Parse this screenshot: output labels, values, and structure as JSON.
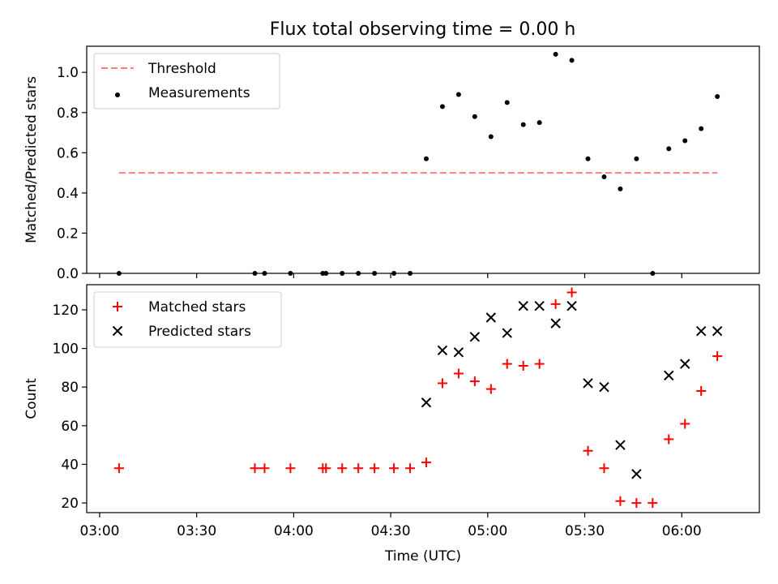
{
  "chart_data": [
    {
      "type": "scatter",
      "title": "Flux total observing time = 0.00 h",
      "ylabel": "Matched/Predicted stars",
      "xlabel": "",
      "ylim": [
        0,
        1.13
      ],
      "xlim": [
        "02:56",
        "06:24"
      ],
      "yticks": [
        0.0,
        0.2,
        0.4,
        0.6,
        0.8,
        1.0
      ],
      "ytick_labels": [
        "0.0",
        "0.2",
        "0.4",
        "0.6",
        "0.8",
        "1.0"
      ],
      "grid": false,
      "legend": {
        "placement": "top-left",
        "entries": [
          {
            "label": "Threshold",
            "marker": "dashed-line",
            "color": "#ff7f7f"
          },
          {
            "label": "Measurements",
            "marker": "dot",
            "color": "#000000"
          }
        ]
      },
      "threshold": {
        "name": "Threshold",
        "value": 0.5,
        "x_start": "03:06",
        "x_end": "06:11",
        "color": "#ff7f7f"
      },
      "series": [
        {
          "name": "Measurements",
          "color": "#000000",
          "x": [
            "03:06",
            "03:48",
            "03:51",
            "03:59",
            "04:09",
            "04:10",
            "04:15",
            "04:20",
            "04:25",
            "04:31",
            "04:36",
            "04:41",
            "04:46",
            "04:51",
            "04:56",
            "05:01",
            "05:06",
            "05:11",
            "05:16",
            "05:21",
            "05:26",
            "05:31",
            "05:36",
            "05:41",
            "05:46",
            "05:51",
            "05:56",
            "06:01",
            "06:06",
            "06:11"
          ],
          "y": [
            0.0,
            0.0,
            0.0,
            0.0,
            0.0,
            0.0,
            0.0,
            0.0,
            0.0,
            0.0,
            0.0,
            0.57,
            0.83,
            0.89,
            0.78,
            0.68,
            0.85,
            0.74,
            0.75,
            1.09,
            1.06,
            0.57,
            0.48,
            0.42,
            0.57,
            0.0,
            0.62,
            0.66,
            0.72,
            0.88
          ]
        }
      ]
    },
    {
      "type": "scatter",
      "title": "",
      "ylabel": "Count",
      "xlabel": "Time (UTC)",
      "ylim": [
        15,
        133
      ],
      "xlim": [
        "02:56",
        "06:24"
      ],
      "yticks": [
        20,
        40,
        60,
        80,
        100,
        120
      ],
      "ytick_labels": [
        "20",
        "40",
        "60",
        "80",
        "100",
        "120"
      ],
      "xticks": [
        "03:00",
        "03:30",
        "04:00",
        "04:30",
        "05:00",
        "05:30",
        "06:00"
      ],
      "xtick_labels": [
        "03:00",
        "03:30",
        "04:00",
        "04:30",
        "05:00",
        "05:30",
        "06:00"
      ],
      "grid": false,
      "legend": {
        "placement": "top-left",
        "entries": [
          {
            "label": "Matched stars",
            "marker": "plus",
            "color": "#ff0000"
          },
          {
            "label": "Predicted stars",
            "marker": "x",
            "color": "#000000"
          }
        ]
      },
      "series": [
        {
          "name": "Matched stars",
          "color": "#ff0000",
          "marker": "plus",
          "x": [
            "03:06",
            "03:48",
            "03:51",
            "03:59",
            "04:09",
            "04:10",
            "04:15",
            "04:20",
            "04:25",
            "04:31",
            "04:36",
            "04:41",
            "04:46",
            "04:51",
            "04:56",
            "05:01",
            "05:06",
            "05:11",
            "05:16",
            "05:21",
            "05:26",
            "05:31",
            "05:36",
            "05:41",
            "05:46",
            "05:51",
            "05:56",
            "06:01",
            "06:06",
            "06:11"
          ],
          "y": [
            38,
            38,
            38,
            38,
            38,
            38,
            38,
            38,
            38,
            38,
            38,
            41,
            82,
            87,
            83,
            79,
            92,
            91,
            92,
            123,
            129,
            47,
            38,
            21,
            20,
            20,
            53,
            61,
            78,
            96
          ]
        },
        {
          "name": "Predicted stars",
          "color": "#000000",
          "marker": "x",
          "x": [
            "04:41",
            "04:46",
            "04:51",
            "04:56",
            "05:01",
            "05:06",
            "05:11",
            "05:16",
            "05:21",
            "05:26",
            "05:31",
            "05:36",
            "05:41",
            "05:46",
            "05:56",
            "06:01",
            "06:06",
            "06:11"
          ],
          "y": [
            72,
            99,
            98,
            106,
            116,
            108,
            122,
            122,
            113,
            122,
            82,
            80,
            50,
            35,
            86,
            92,
            109,
            109
          ]
        }
      ]
    }
  ]
}
